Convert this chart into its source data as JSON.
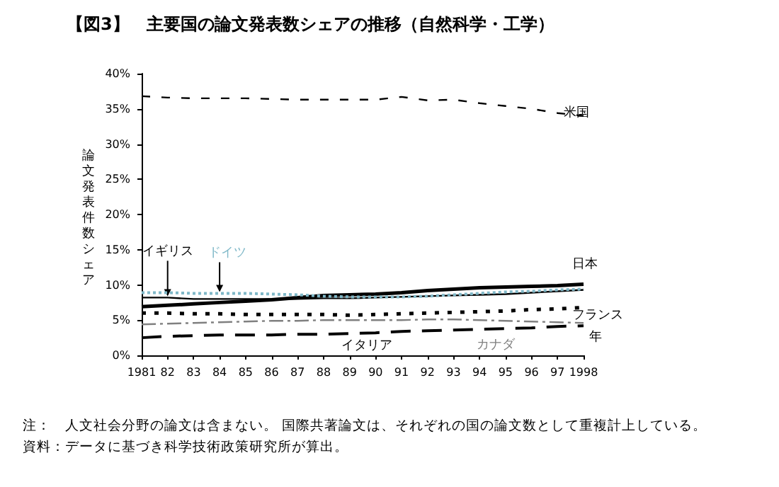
{
  "chart_data": {
    "type": "line",
    "title": "【図3】　主要国の論文発表数シェアの推移（自然科学・工学）",
    "xlabel": "年",
    "ylabel": "論文発表件数シェア",
    "categories": [
      "1981",
      "82",
      "83",
      "84",
      "85",
      "86",
      "87",
      "88",
      "89",
      "90",
      "91",
      "92",
      "93",
      "94",
      "95",
      "96",
      "97",
      "1998"
    ],
    "ylim": [
      0,
      40
    ],
    "yticks": [
      {
        "value": 0,
        "label": "0%"
      },
      {
        "value": 5,
        "label": "5%"
      },
      {
        "value": 10,
        "label": "10%"
      },
      {
        "value": 15,
        "label": "15%"
      },
      {
        "value": 20,
        "label": "20%"
      },
      {
        "value": 25,
        "label": "25%"
      },
      {
        "value": 30,
        "label": "30%"
      },
      {
        "value": 35,
        "label": "35%"
      },
      {
        "value": 40,
        "label": "40%"
      }
    ],
    "grid": false,
    "legend": false,
    "marker": "none",
    "series": [
      {
        "name": "米国",
        "color": "#000000",
        "line_style": "dashed",
        "values": [
          36.8,
          36.6,
          36.5,
          36.5,
          36.5,
          36.4,
          36.3,
          36.3,
          36.3,
          36.3,
          36.7,
          36.2,
          36.3,
          35.8,
          35.4,
          35.0,
          34.4,
          34.0
        ]
      },
      {
        "name": "日本",
        "color": "#000000",
        "line_style": "solid",
        "values": [
          6.9,
          7.1,
          7.3,
          7.5,
          7.7,
          7.9,
          8.2,
          8.5,
          8.6,
          8.7,
          8.9,
          9.2,
          9.4,
          9.6,
          9.7,
          9.8,
          9.9,
          10.1
        ]
      },
      {
        "name": "イギリス",
        "color": "#000000",
        "line_style": "solid",
        "values": [
          8.2,
          8.2,
          8.0,
          8.0,
          8.0,
          8.0,
          8.0,
          8.1,
          8.1,
          8.2,
          8.3,
          8.4,
          8.5,
          8.6,
          8.7,
          8.9,
          9.1,
          9.3
        ]
      },
      {
        "name": "ドイツ",
        "color": "#7fb8c8",
        "line_style": "dotted",
        "values": [
          8.9,
          8.9,
          8.8,
          8.8,
          8.8,
          8.7,
          8.6,
          8.4,
          8.3,
          8.3,
          8.3,
          8.4,
          8.6,
          8.8,
          9.0,
          9.1,
          9.3,
          9.4
        ]
      },
      {
        "name": "フランス",
        "color": "#000000",
        "line_style": "dotted",
        "values": [
          6.0,
          6.0,
          5.9,
          5.9,
          5.8,
          5.8,
          5.8,
          5.8,
          5.7,
          5.8,
          5.9,
          6.0,
          6.1,
          6.2,
          6.3,
          6.5,
          6.6,
          6.8
        ]
      },
      {
        "name": "カナダ",
        "color": "#808080",
        "line_style": "dashed",
        "values": [
          4.4,
          4.5,
          4.6,
          4.7,
          4.8,
          4.9,
          4.9,
          5.0,
          5.0,
          5.0,
          5.0,
          5.1,
          5.1,
          5.0,
          4.9,
          4.8,
          4.7,
          4.6
        ]
      },
      {
        "name": "イタリア",
        "color": "#000000",
        "line_style": "dashed",
        "values": [
          2.5,
          2.7,
          2.8,
          2.9,
          2.9,
          2.9,
          3.0,
          3.0,
          3.1,
          3.2,
          3.4,
          3.5,
          3.6,
          3.7,
          3.8,
          3.9,
          4.1,
          4.2
        ]
      }
    ],
    "annotations": [
      "注：　人文社会分野の論文は含まない。 国際共著論文は、それぞれの国の論文数として重複計上している。",
      "資料：データに基づき科学技術政策研究所が算出。"
    ]
  }
}
